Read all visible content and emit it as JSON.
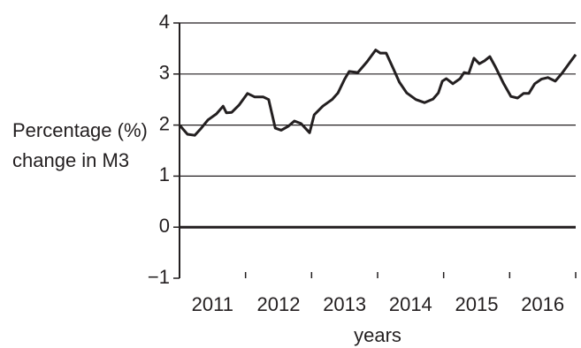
{
  "chart_data": {
    "type": "line",
    "y_label": "Percentage (%) change in M3",
    "x_label": "years",
    "x": [
      2011.0,
      2011.12,
      2011.23,
      2011.33,
      2011.43,
      2011.56,
      2011.66,
      2011.71,
      2011.79,
      2011.9,
      2012.03,
      2012.14,
      2012.27,
      2012.35,
      2012.45,
      2012.54,
      2012.65,
      2012.74,
      2012.84,
      2012.97,
      2013.04,
      2013.17,
      2013.31,
      2013.4,
      2013.5,
      2013.57,
      2013.7,
      2013.84,
      2013.97,
      2014.04,
      2014.13,
      2014.24,
      2014.33,
      2014.44,
      2014.58,
      2014.71,
      2014.84,
      2014.92,
      2014.98,
      2015.04,
      2015.14,
      2015.25,
      2015.31,
      2015.38,
      2015.46,
      2015.54,
      2015.62,
      2015.7,
      2015.78,
      2015.91,
      2016.02,
      2016.12,
      2016.21,
      2016.29,
      2016.38,
      2016.48,
      2016.58,
      2016.69,
      2016.79,
      2016.92,
      2017.0
    ],
    "series": [
      {
        "color": "#231f20",
        "values": [
          2.0,
          1.82,
          1.8,
          1.94,
          2.1,
          2.22,
          2.37,
          2.24,
          2.25,
          2.39,
          2.62,
          2.55,
          2.55,
          2.5,
          1.94,
          1.9,
          1.98,
          2.08,
          2.03,
          1.85,
          2.2,
          2.37,
          2.5,
          2.63,
          2.9,
          3.05,
          3.03,
          3.24,
          3.47,
          3.41,
          3.41,
          3.1,
          2.84,
          2.63,
          2.5,
          2.44,
          2.51,
          2.63,
          2.86,
          2.91,
          2.81,
          2.91,
          3.03,
          3.01,
          3.31,
          3.2,
          3.26,
          3.34,
          3.15,
          2.81,
          2.56,
          2.53,
          2.62,
          2.62,
          2.81,
          2.9,
          2.93,
          2.86,
          3.01,
          3.24,
          3.38
        ]
      }
    ],
    "xlim": [
      2011,
      2017
    ],
    "xticks": [
      {
        "value": 2011.5,
        "label": "2011"
      },
      {
        "value": 2012.5,
        "label": "2012"
      },
      {
        "value": 2013.5,
        "label": "2013"
      },
      {
        "value": 2014.5,
        "label": "2014"
      },
      {
        "value": 2015.5,
        "label": "2015"
      },
      {
        "value": 2016.5,
        "label": "2016"
      }
    ],
    "x_minor_ticks": [
      2012,
      2013,
      2014,
      2015,
      2016,
      2017
    ],
    "ylim": [
      -1,
      4
    ],
    "yticks": [
      {
        "value": -1,
        "label": "−1"
      },
      0,
      1,
      2,
      3,
      4
    ],
    "grid": true,
    "zero_line": true
  }
}
